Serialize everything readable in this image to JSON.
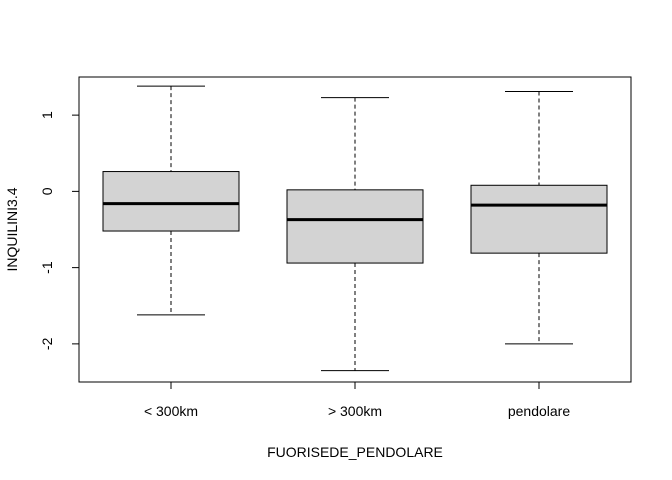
{
  "chart_data": {
    "type": "boxplot",
    "title": "",
    "xlabel": "FUORISEDE_PENDOLARE",
    "ylabel": "INQUILINI3.4",
    "ylim": [
      -2.5,
      1.5
    ],
    "yticks": [
      -2,
      -1,
      0,
      1
    ],
    "yticklabels": [
      "-2",
      "-1",
      "0",
      "1"
    ],
    "grid": false,
    "legend": "none",
    "box_fill": "#d3d3d3",
    "stroke": "#000000",
    "categories": [
      "< 300km",
      "> 300km",
      "pendolare"
    ],
    "boxes": [
      {
        "label": "< 300km",
        "whisker_low": -1.62,
        "q1": -0.52,
        "median": -0.16,
        "q3": 0.26,
        "whisker_high": 1.38
      },
      {
        "label": "> 300km",
        "whisker_low": -2.35,
        "q1": -0.94,
        "median": -0.37,
        "q3": 0.02,
        "whisker_high": 1.23
      },
      {
        "label": "pendolare",
        "whisker_low": -2.0,
        "q1": -0.81,
        "median": -0.18,
        "q3": 0.08,
        "whisker_high": 1.31
      }
    ]
  }
}
